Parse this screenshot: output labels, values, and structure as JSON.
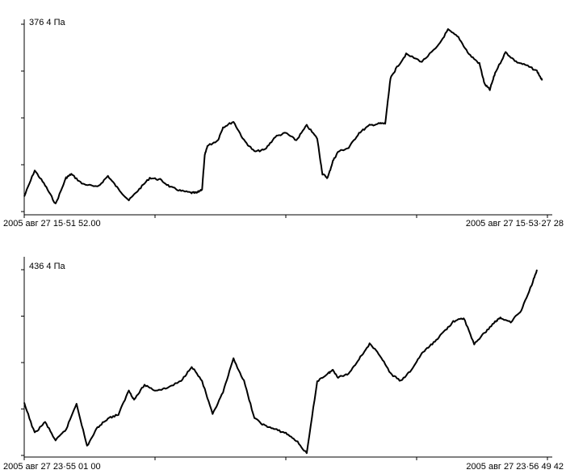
{
  "chart_data": [
    {
      "type": "line",
      "ylabel": "376 4 Па",
      "x_start_label": "2005 авг 27 15·51 52.00",
      "x_end_label": "2005 авг 27 15·53·27 28",
      "xlim": [
        0,
        1
      ],
      "ylim": [
        0,
        1
      ],
      "grid": false,
      "series": [
        {
          "x": [
            0.0,
            0.02,
            0.04,
            0.06,
            0.08,
            0.09,
            0.11,
            0.14,
            0.16,
            0.18,
            0.2,
            0.22,
            0.24,
            0.26,
            0.28,
            0.3,
            0.32,
            0.33,
            0.34,
            0.345,
            0.35,
            0.37,
            0.38,
            0.4,
            0.42,
            0.44,
            0.46,
            0.48,
            0.5,
            0.52,
            0.54,
            0.56,
            0.57,
            0.58,
            0.59,
            0.6,
            0.62,
            0.64,
            0.66,
            0.68,
            0.69,
            0.7,
            0.71,
            0.73,
            0.76,
            0.79,
            0.81,
            0.83,
            0.85,
            0.87,
            0.88,
            0.89,
            0.9,
            0.92,
            0.94,
            0.96,
            0.98,
            0.99
          ],
          "y": [
            0.08,
            0.22,
            0.14,
            0.04,
            0.18,
            0.2,
            0.15,
            0.13,
            0.19,
            0.12,
            0.06,
            0.12,
            0.18,
            0.17,
            0.13,
            0.11,
            0.1,
            0.1,
            0.12,
            0.3,
            0.35,
            0.38,
            0.45,
            0.48,
            0.38,
            0.32,
            0.33,
            0.4,
            0.42,
            0.38,
            0.46,
            0.39,
            0.2,
            0.18,
            0.27,
            0.32,
            0.34,
            0.42,
            0.46,
            0.47,
            0.47,
            0.71,
            0.76,
            0.84,
            0.8,
            0.88,
            0.97,
            0.93,
            0.84,
            0.79,
            0.68,
            0.65,
            0.74,
            0.85,
            0.8,
            0.78,
            0.75,
            0.7
          ]
        }
      ]
    },
    {
      "type": "line",
      "ylabel": "436 4 Па",
      "x_start_label": "2005 авг 27 23·55 01 00",
      "x_end_label": "2005 авг 27 23·56 49 42",
      "xlim": [
        0,
        1
      ],
      "ylim": [
        0,
        1
      ],
      "grid": false,
      "series": [
        {
          "x": [
            0.0,
            0.02,
            0.04,
            0.06,
            0.08,
            0.1,
            0.12,
            0.14,
            0.16,
            0.18,
            0.2,
            0.21,
            0.23,
            0.25,
            0.27,
            0.3,
            0.32,
            0.34,
            0.36,
            0.38,
            0.4,
            0.42,
            0.44,
            0.46,
            0.48,
            0.5,
            0.52,
            0.54,
            0.56,
            0.58,
            0.59,
            0.6,
            0.62,
            0.64,
            0.66,
            0.68,
            0.7,
            0.72,
            0.74,
            0.76,
            0.78,
            0.8,
            0.82,
            0.84,
            0.86,
            0.88,
            0.9,
            0.91,
            0.93,
            0.95,
            0.97,
            0.98
          ],
          "y": [
            0.28,
            0.12,
            0.18,
            0.08,
            0.14,
            0.28,
            0.05,
            0.15,
            0.2,
            0.22,
            0.35,
            0.3,
            0.38,
            0.35,
            0.36,
            0.4,
            0.48,
            0.4,
            0.22,
            0.34,
            0.52,
            0.4,
            0.2,
            0.16,
            0.14,
            0.12,
            0.08,
            0.01,
            0.4,
            0.44,
            0.46,
            0.42,
            0.44,
            0.52,
            0.6,
            0.54,
            0.44,
            0.4,
            0.46,
            0.55,
            0.6,
            0.66,
            0.72,
            0.74,
            0.6,
            0.66,
            0.72,
            0.74,
            0.72,
            0.78,
            0.92,
            1.0
          ]
        }
      ]
    }
  ]
}
